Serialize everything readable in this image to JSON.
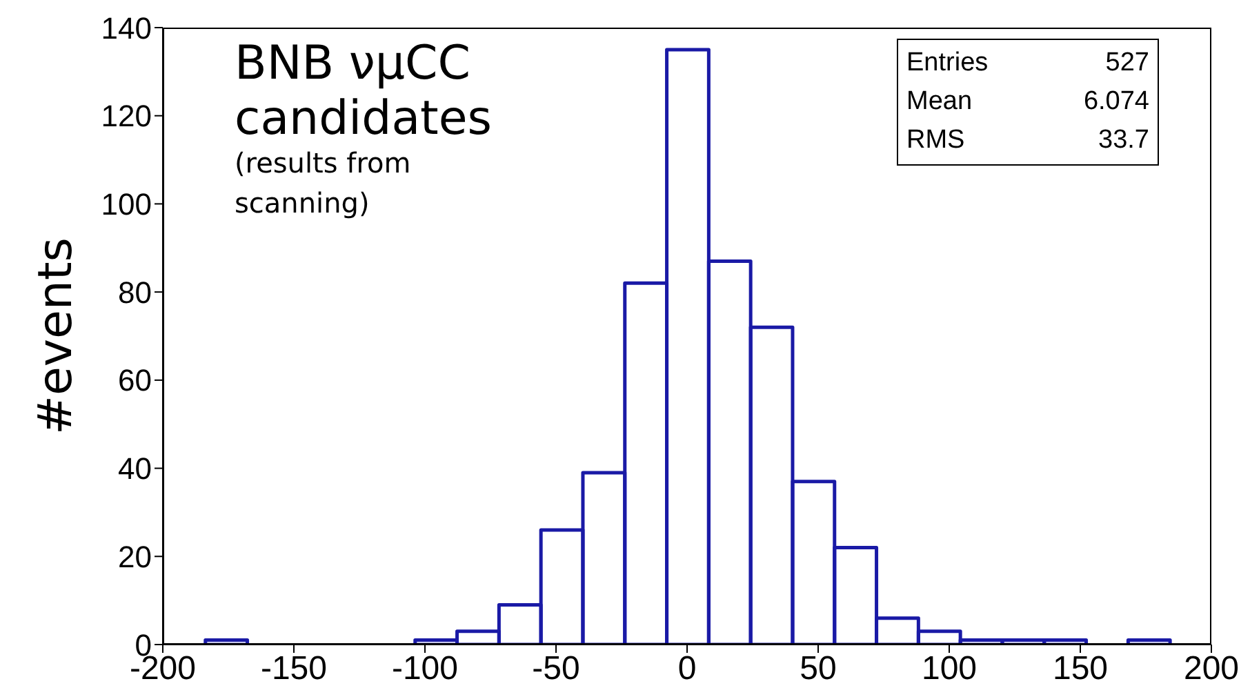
{
  "chart_data": {
    "type": "histogram",
    "title": "BNB νμCC candidates",
    "subtitle": "(results from scanning)",
    "ylabel": "#events",
    "bins": [
      -200,
      -184,
      -168,
      -152,
      -136,
      -120,
      -104,
      -88,
      -72,
      -56,
      -40,
      -24,
      -8,
      8,
      24,
      40,
      56,
      72,
      88,
      104,
      120,
      136,
      152,
      168,
      184,
      200
    ],
    "values": [
      0,
      1,
      0,
      0,
      0,
      0,
      1,
      3,
      9,
      26,
      39,
      82,
      135,
      87,
      72,
      37,
      22,
      6,
      3,
      1,
      1,
      1,
      0,
      1,
      0
    ],
    "color": "#1a1aa6",
    "xlim": [
      -200,
      200
    ],
    "xticks": [
      -200,
      -150,
      -100,
      -50,
      0,
      50,
      100,
      150,
      200
    ],
    "ylim": [
      0,
      140
    ],
    "yticks": [
      0,
      20,
      40,
      60,
      80,
      100,
      120,
      140
    ],
    "annotations": [
      "Entries 527",
      "Mean 6.074",
      "RMS 33.7"
    ]
  }
}
